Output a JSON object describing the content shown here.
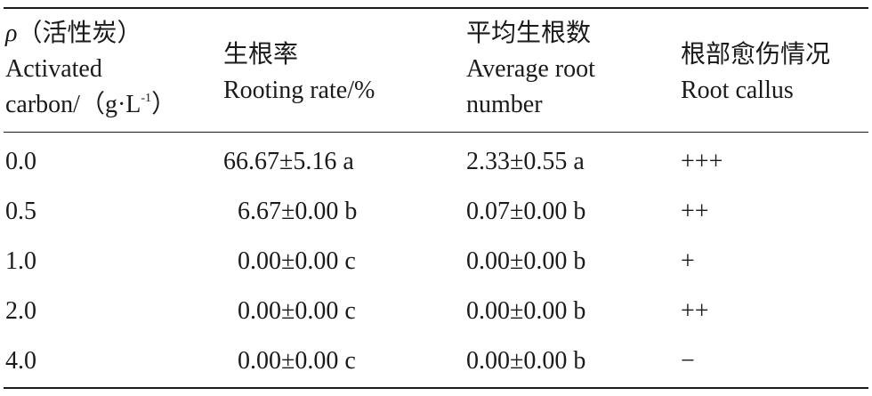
{
  "table": {
    "headers": {
      "col1": {
        "rho": "ρ",
        "zh": "（活性炭）",
        "en1": "Activated",
        "en2_pre": "carbon/（g·L",
        "en2_sup": "-1",
        "en2_post": "）"
      },
      "col2": {
        "zh": "生根率",
        "en": "Rooting rate/%"
      },
      "col3": {
        "zh": "平均生根数",
        "en1": "Average root",
        "en2": "number"
      },
      "col4": {
        "zh": "根部愈伤情况",
        "en": "Root callus"
      }
    },
    "rows": [
      {
        "conc": "0.0",
        "rate": "66.67±5.16 a",
        "number": "2.33±0.55 a",
        "callus": "+++"
      },
      {
        "conc": "0.5",
        "rate": "6.67±0.00 b",
        "number": "0.07±0.00 b",
        "callus": "++"
      },
      {
        "conc": "1.0",
        "rate": "0.00±0.00 c",
        "number": "0.00±0.00 b",
        "callus": "+"
      },
      {
        "conc": "2.0",
        "rate": "0.00±0.00 c",
        "number": "0.00±0.00 b",
        "callus": "++"
      },
      {
        "conc": "4.0",
        "rate": "0.00±0.00 c",
        "number": "0.00±0.00 b",
        "callus": "−"
      }
    ]
  }
}
